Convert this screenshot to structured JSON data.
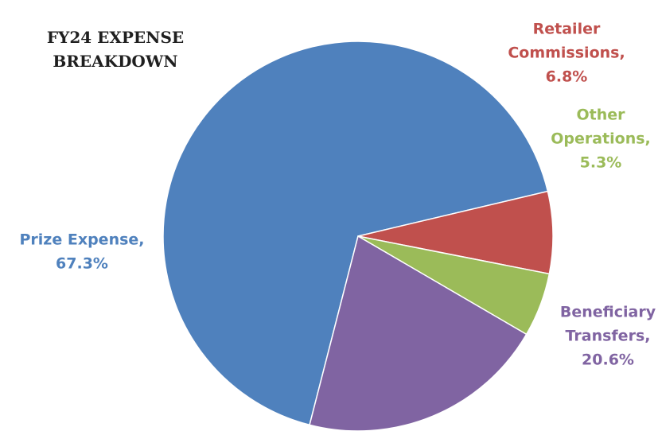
{
  "chart_data": {
    "type": "pie",
    "title_lines": [
      "FY24 EXPENSE",
      "BREAKDOWN"
    ],
    "slices": [
      {
        "name": "Prize Expense",
        "value": 67.3,
        "label_lines": [
          "Prize Expense,",
          "67.3%"
        ],
        "color": "#4f81bd"
      },
      {
        "name": "Retailer Commissions",
        "value": 6.8,
        "label_lines": [
          "Retailer",
          "Commissions,",
          "6.8%"
        ],
        "color": "#c0504d"
      },
      {
        "name": "Other Operations",
        "value": 5.3,
        "label_lines": [
          "Other",
          "Operations,",
          "5.3%"
        ],
        "color": "#9bbb59"
      },
      {
        "name": "Beneficiary Transfers",
        "value": 20.6,
        "label_lines": [
          "Beneficiary",
          "Transfers,",
          "20.6%"
        ],
        "color": "#8064a2"
      }
    ],
    "start_slice": "Prize Expense",
    "direction": "clockwise",
    "legend": "none"
  }
}
